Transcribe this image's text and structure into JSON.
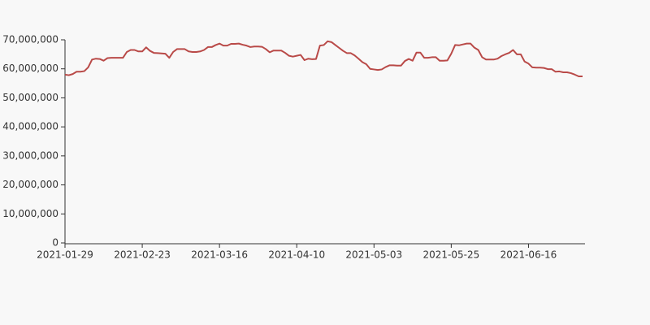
{
  "chart_data": {
    "type": "line",
    "categories": [
      "2021-01-29",
      null,
      null,
      null,
      null,
      null,
      null,
      null,
      null,
      null,
      null,
      null,
      null,
      null,
      null,
      null,
      null,
      null,
      null,
      null,
      "2021-02-23",
      null,
      null,
      null,
      null,
      null,
      null,
      null,
      null,
      null,
      null,
      null,
      null,
      null,
      null,
      null,
      null,
      null,
      null,
      null,
      "2021-03-16",
      null,
      null,
      null,
      null,
      null,
      null,
      null,
      null,
      null,
      null,
      null,
      null,
      null,
      null,
      null,
      null,
      null,
      null,
      null,
      "2021-04-10",
      null,
      null,
      null,
      null,
      null,
      null,
      null,
      null,
      null,
      null,
      null,
      null,
      null,
      null,
      null,
      null,
      null,
      null,
      null,
      "2021-05-03",
      null,
      null,
      null,
      null,
      null,
      null,
      null,
      null,
      null,
      null,
      null,
      null,
      null,
      null,
      null,
      null,
      null,
      null,
      null,
      "2021-05-25",
      null,
      null,
      null,
      null,
      null,
      null,
      null,
      null,
      null,
      null,
      null,
      null,
      null,
      null,
      null,
      null,
      null,
      null,
      null,
      "2021-06-16",
      null,
      null,
      null,
      null,
      null,
      null,
      null,
      null,
      null,
      null,
      null,
      null,
      null,
      null
    ],
    "series": [
      {
        "color": "#b94a48",
        "values": [
          58000000,
          57800000,
          58200000,
          59000000,
          59000000,
          59200000,
          60500000,
          63200000,
          63500000,
          63400000,
          62800000,
          63700000,
          63800000,
          63800000,
          63800000,
          63800000,
          65800000,
          66500000,
          66500000,
          66000000,
          66000000,
          67400000,
          66200000,
          65500000,
          65400000,
          65300000,
          65200000,
          63800000,
          65800000,
          66800000,
          66800000,
          66800000,
          66000000,
          65800000,
          65800000,
          66000000,
          66500000,
          67500000,
          67500000,
          68200000,
          68700000,
          68000000,
          68000000,
          68600000,
          68600000,
          68700000,
          68300000,
          68000000,
          67500000,
          67700000,
          67700000,
          67600000,
          66800000,
          65700000,
          66300000,
          66300000,
          66300000,
          65500000,
          64500000,
          64200000,
          64500000,
          64800000,
          63000000,
          63500000,
          63300000,
          63400000,
          68000000,
          68200000,
          69500000,
          69200000,
          68200000,
          67200000,
          66200000,
          65400000,
          65400000,
          64600000,
          63500000,
          62300000,
          61600000,
          60000000,
          59800000,
          59600000,
          59800000,
          60600000,
          61200000,
          61200000,
          61100000,
          61100000,
          62700000,
          63400000,
          62800000,
          65600000,
          65600000,
          63800000,
          63800000,
          64000000,
          64000000,
          62800000,
          62800000,
          62900000,
          65200000,
          68200000,
          68100000,
          68400000,
          68700000,
          68700000,
          67300000,
          66500000,
          64000000,
          63200000,
          63200000,
          63200000,
          63500000,
          64400000,
          65000000,
          65500000,
          66500000,
          65000000,
          65000000,
          62500000,
          61800000,
          60500000,
          60400000,
          60400000,
          60300000,
          59900000,
          59900000,
          59000000,
          59100000,
          58800000,
          58800000,
          58500000,
          58000000,
          57400000,
          57400000
        ]
      }
    ],
    "ylim": [
      0,
      70000000
    ],
    "yticks": [
      0,
      {
        "value": 10000000,
        "label": "10,000,000"
      },
      {
        "value": 20000000,
        "label": "20,000,000"
      },
      {
        "value": 30000000,
        "label": "30,000,000"
      },
      {
        "value": 40000000,
        "label": "40,000,000"
      },
      {
        "value": 50000000,
        "label": "50,000,000"
      },
      {
        "value": 60000000,
        "label": "60,000,000"
      },
      {
        "value": 70000000,
        "label": "70,000,000"
      }
    ]
  }
}
